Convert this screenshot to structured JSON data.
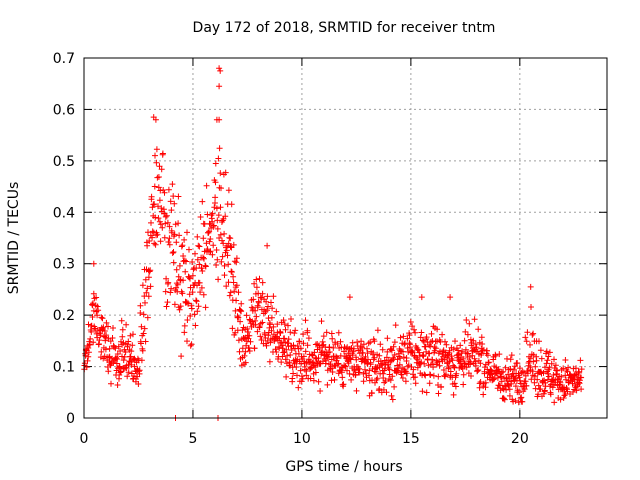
{
  "chart_data": {
    "type": "scatter",
    "title": "Day 172 of 2018, SRMTID for receiver tntm",
    "xlabel": "GPS time / hours",
    "ylabel": "SRMTID / TECUs",
    "xlim": [
      0,
      24
    ],
    "ylim": [
      0,
      0.7
    ],
    "xticks": [
      0,
      5,
      10,
      15,
      20
    ],
    "xtick_labels": [
      "0",
      "5",
      "10",
      "15",
      "20"
    ],
    "yticks": [
      0,
      0.1,
      0.2,
      0.3,
      0.4,
      0.5,
      0.6,
      0.7
    ],
    "ytick_labels": [
      "0",
      "0.1",
      "0.2",
      "0.3",
      "0.4",
      "0.5",
      "0.6",
      "0.7"
    ],
    "grid": true,
    "marker": "+",
    "color": "#ff0000",
    "x_end": 22.85,
    "series": [
      {
        "name": "SRMTID",
        "description_points": "approximate density profile; many '+' markers per interval",
        "profile": [
          {
            "x": 0.0,
            "y": 0.12,
            "spread": 0.05
          },
          {
            "x": 0.5,
            "y": 0.19,
            "spread": 0.06
          },
          {
            "x": 1.0,
            "y": 0.14,
            "spread": 0.05
          },
          {
            "x": 1.5,
            "y": 0.11,
            "spread": 0.05
          },
          {
            "x": 2.0,
            "y": 0.13,
            "spread": 0.05
          },
          {
            "x": 2.5,
            "y": 0.1,
            "spread": 0.04
          },
          {
            "x": 3.0,
            "y": 0.3,
            "spread": 0.15
          },
          {
            "x": 3.3,
            "y": 0.45,
            "spread": 0.12
          },
          {
            "x": 3.8,
            "y": 0.35,
            "spread": 0.12
          },
          {
            "x": 4.5,
            "y": 0.27,
            "spread": 0.1
          },
          {
            "x": 5.0,
            "y": 0.25,
            "spread": 0.1
          },
          {
            "x": 5.7,
            "y": 0.38,
            "spread": 0.12
          },
          {
            "x": 6.3,
            "y": 0.4,
            "spread": 0.12
          },
          {
            "x": 6.8,
            "y": 0.28,
            "spread": 0.1
          },
          {
            "x": 7.3,
            "y": 0.13,
            "spread": 0.05
          },
          {
            "x": 8.0,
            "y": 0.2,
            "spread": 0.06
          },
          {
            "x": 9.0,
            "y": 0.15,
            "spread": 0.05
          },
          {
            "x": 10.0,
            "y": 0.12,
            "spread": 0.05
          },
          {
            "x": 11.0,
            "y": 0.12,
            "spread": 0.05
          },
          {
            "x": 12.0,
            "y": 0.11,
            "spread": 0.05
          },
          {
            "x": 13.0,
            "y": 0.1,
            "spread": 0.05
          },
          {
            "x": 14.0,
            "y": 0.1,
            "spread": 0.05
          },
          {
            "x": 15.0,
            "y": 0.12,
            "spread": 0.05
          },
          {
            "x": 16.0,
            "y": 0.12,
            "spread": 0.05
          },
          {
            "x": 17.0,
            "y": 0.11,
            "spread": 0.05
          },
          {
            "x": 18.0,
            "y": 0.12,
            "spread": 0.05
          },
          {
            "x": 19.0,
            "y": 0.08,
            "spread": 0.04
          },
          {
            "x": 20.0,
            "y": 0.07,
            "spread": 0.04
          },
          {
            "x": 20.5,
            "y": 0.12,
            "spread": 0.06
          },
          {
            "x": 21.0,
            "y": 0.09,
            "spread": 0.05
          },
          {
            "x": 22.0,
            "y": 0.07,
            "spread": 0.04
          },
          {
            "x": 22.85,
            "y": 0.07,
            "spread": 0.03
          }
        ],
        "notable_points": [
          {
            "x": 3.2,
            "y": 0.585
          },
          {
            "x": 3.3,
            "y": 0.58
          },
          {
            "x": 6.1,
            "y": 0.58
          },
          {
            "x": 6.2,
            "y": 0.58
          },
          {
            "x": 6.2,
            "y": 0.68
          },
          {
            "x": 6.25,
            "y": 0.675
          },
          {
            "x": 6.2,
            "y": 0.645
          },
          {
            "x": 0.45,
            "y": 0.3
          },
          {
            "x": 8.4,
            "y": 0.335
          },
          {
            "x": 4.2,
            "y": 0.0
          },
          {
            "x": 6.15,
            "y": 0.0
          },
          {
            "x": 20.5,
            "y": 0.255
          },
          {
            "x": 15.5,
            "y": 0.235
          },
          {
            "x": 16.8,
            "y": 0.235
          },
          {
            "x": 12.2,
            "y": 0.235
          }
        ],
        "point_count": 1500
      }
    ]
  }
}
